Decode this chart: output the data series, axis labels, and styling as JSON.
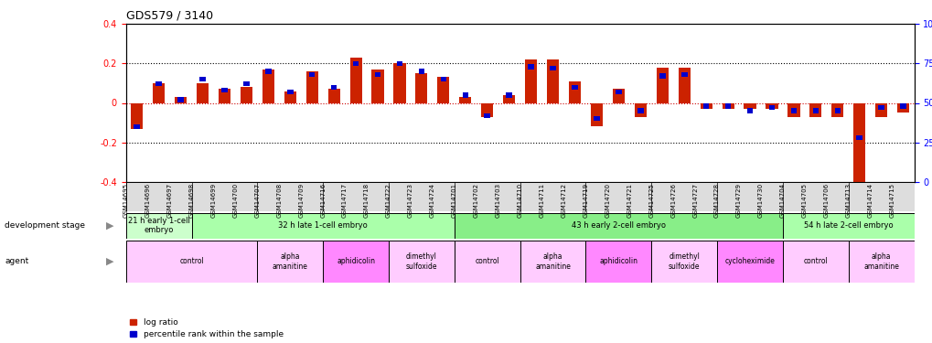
{
  "title": "GDS579 / 3140",
  "samples": [
    "GSM14695",
    "GSM14696",
    "GSM14697",
    "GSM14698",
    "GSM14699",
    "GSM14700",
    "GSM14707",
    "GSM14708",
    "GSM14709",
    "GSM14716",
    "GSM14717",
    "GSM14718",
    "GSM14722",
    "GSM14723",
    "GSM14724",
    "GSM14701",
    "GSM14702",
    "GSM14703",
    "GSM14710",
    "GSM14711",
    "GSM14712",
    "GSM14719",
    "GSM14720",
    "GSM14721",
    "GSM14725",
    "GSM14726",
    "GSM14727",
    "GSM14728",
    "GSM14729",
    "GSM14730",
    "GSM14704",
    "GSM14705",
    "GSM14706",
    "GSM14713",
    "GSM14714",
    "GSM14715"
  ],
  "log_ratio": [
    -0.13,
    0.1,
    0.03,
    0.1,
    0.07,
    0.08,
    0.17,
    0.06,
    0.16,
    0.07,
    0.23,
    0.17,
    0.2,
    0.15,
    0.13,
    0.03,
    -0.07,
    0.04,
    0.22,
    0.22,
    0.11,
    -0.12,
    0.07,
    -0.07,
    0.18,
    0.18,
    -0.03,
    -0.03,
    -0.03,
    -0.03,
    -0.07,
    -0.07,
    -0.07,
    -0.4,
    -0.07,
    -0.05
  ],
  "percentile": [
    35,
    62,
    52,
    65,
    58,
    62,
    70,
    57,
    68,
    60,
    75,
    68,
    75,
    70,
    65,
    55,
    42,
    55,
    73,
    72,
    60,
    40,
    57,
    45,
    67,
    68,
    48,
    48,
    45,
    47,
    45,
    45,
    45,
    28,
    47,
    48
  ],
  "dev_stage_groups": [
    {
      "label": "21 h early 1-cell\nembryo",
      "start": 0,
      "end": 3,
      "color": "#ccffcc"
    },
    {
      "label": "32 h late 1-cell embryo",
      "start": 3,
      "end": 15,
      "color": "#aaffaa"
    },
    {
      "label": "43 h early 2-cell embryo",
      "start": 15,
      "end": 30,
      "color": "#88ee88"
    },
    {
      "label": "54 h late 2-cell embryo",
      "start": 30,
      "end": 36,
      "color": "#aaffaa"
    }
  ],
  "agent_groups": [
    {
      "label": "control",
      "start": 0,
      "end": 6,
      "color": "#ffccff"
    },
    {
      "label": "alpha\namanitine",
      "start": 6,
      "end": 9,
      "color": "#ffccff"
    },
    {
      "label": "aphidicolin",
      "start": 9,
      "end": 12,
      "color": "#ff88ff"
    },
    {
      "label": "dimethyl\nsulfoxide",
      "start": 12,
      "end": 15,
      "color": "#ffccff"
    },
    {
      "label": "control",
      "start": 15,
      "end": 18,
      "color": "#ffccff"
    },
    {
      "label": "alpha\namanitine",
      "start": 18,
      "end": 21,
      "color": "#ffccff"
    },
    {
      "label": "aphidicolin",
      "start": 21,
      "end": 24,
      "color": "#ff88ff"
    },
    {
      "label": "dimethyl\nsulfoxide",
      "start": 24,
      "end": 27,
      "color": "#ffccff"
    },
    {
      "label": "cycloheximide",
      "start": 27,
      "end": 30,
      "color": "#ff88ff"
    },
    {
      "label": "control",
      "start": 30,
      "end": 33,
      "color": "#ffccff"
    },
    {
      "label": "alpha\namanitine",
      "start": 33,
      "end": 36,
      "color": "#ffccff"
    }
  ],
  "ylim_left": [
    -0.4,
    0.4
  ],
  "ylim_right": [
    0,
    100
  ],
  "bar_color_red": "#cc2200",
  "bar_color_blue": "#0000cc",
  "zero_line_color": "#cc0000",
  "bg_color": "#ffffff",
  "label_bg_color": "#dddddd"
}
